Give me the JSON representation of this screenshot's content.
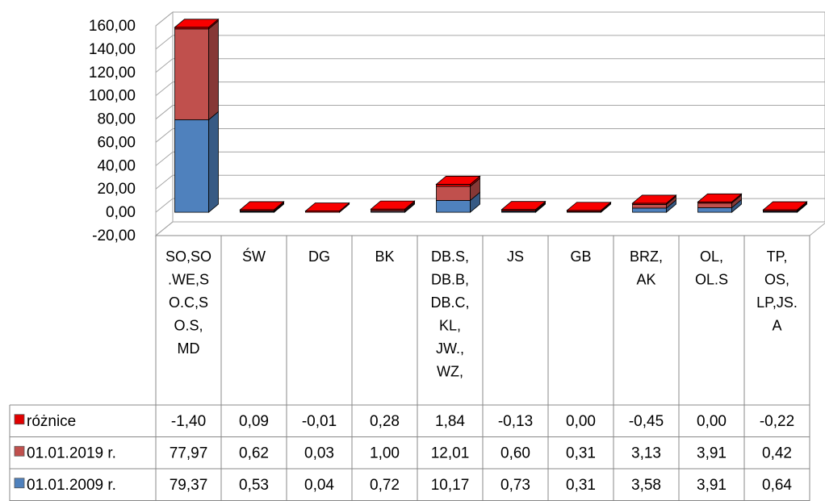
{
  "chart_data": {
    "type": "bar",
    "stacked": true,
    "three_d": true,
    "ylim": [
      -20,
      160
    ],
    "ytick_labels": [
      "160,00",
      "140,00",
      "120,00",
      "100,00",
      "80,00",
      "60,00",
      "40,00",
      "20,00",
      "0,00",
      "-20,00"
    ],
    "yticks": [
      160,
      140,
      120,
      100,
      80,
      60,
      40,
      20,
      0,
      -20
    ],
    "grid": true,
    "legend": "in data table rows",
    "categories": [
      [
        "SO,SO",
        ".WE,S",
        "O.C,S",
        "O.S,",
        "MD"
      ],
      [
        "ŚW"
      ],
      [
        "DG"
      ],
      [
        "BK"
      ],
      [
        "DB.S,",
        "DB.B,",
        "DB.C,",
        "KL,",
        "JW.,",
        "WZ,"
      ],
      [
        "JS"
      ],
      [
        "GB"
      ],
      [
        "BRZ,",
        "AK"
      ],
      [
        "OL,",
        "OL.S"
      ],
      [
        "TP,",
        "OS,",
        "LP,JS.",
        "A"
      ]
    ],
    "series": [
      {
        "name": "różnice",
        "color": "#e10000",
        "labels": [
          "-1,40",
          "0,09",
          "-0,01",
          "0,28",
          "1,84",
          "-0,13",
          "0,00",
          "-0,45",
          "0,00",
          "-0,22"
        ],
        "values": [
          -1.4,
          0.09,
          -0.01,
          0.28,
          1.84,
          -0.13,
          0.0,
          -0.45,
          0.0,
          -0.22
        ]
      },
      {
        "name": "01.01.2019 r.",
        "color": "#c0504d",
        "labels": [
          "77,97",
          "0,62",
          "0,03",
          "1,00",
          "12,01",
          "0,60",
          "0,31",
          "3,13",
          "3,91",
          "0,42"
        ],
        "values": [
          77.97,
          0.62,
          0.03,
          1.0,
          12.01,
          0.6,
          0.31,
          3.13,
          3.91,
          0.42
        ]
      },
      {
        "name": "01.01.2009 r.",
        "color": "#4f81bd",
        "labels": [
          "79,37",
          "0,53",
          "0,04",
          "0,72",
          "10,17",
          "0,73",
          "0,31",
          "3,58",
          "3,91",
          "0,64"
        ],
        "values": [
          79.37,
          0.53,
          0.04,
          0.72,
          10.17,
          0.73,
          0.31,
          3.58,
          3.91,
          0.64
        ]
      }
    ]
  }
}
